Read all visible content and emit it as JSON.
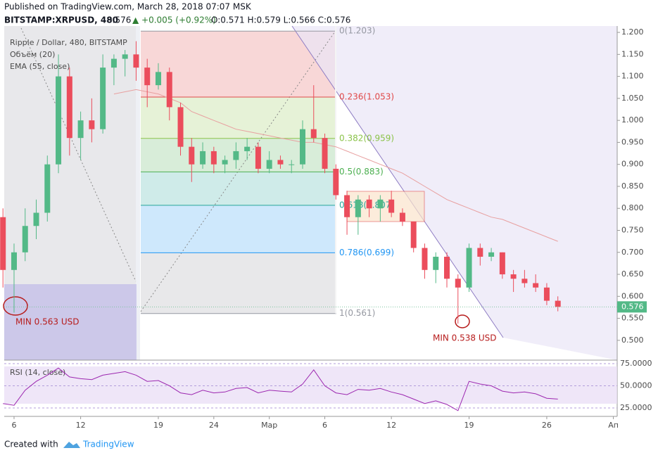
{
  "chart_data": {
    "type": "candlestick",
    "published": "Published on TradingView.com, March 28, 2018 07:07 MSK",
    "symbol": "BITSTAMP:XRPUSD, 480",
    "last": "0.576",
    "change": "▲ +0.005 (+0.92%)",
    "ohlc": "O:0.571 H:0.579 L:0.566 C:0.576",
    "legend": [
      "Ripple / Dollar, 480, BITSTAMP",
      "Объём (20)",
      "EMA (55, close)"
    ],
    "rsi_title": "RSI (14, close)",
    "price_label": "0.576",
    "annotations": [
      "MIN 0.563 USD",
      "MIN 0.538 USD"
    ],
    "footer": [
      "Created with",
      "TradingView"
    ],
    "categories": [
      null,
      "6",
      null,
      null,
      null,
      null,
      null,
      "12",
      null,
      null,
      null,
      null,
      null,
      null,
      "19",
      null,
      null,
      null,
      null,
      "24",
      null,
      null,
      null,
      null,
      "Мар",
      null,
      null,
      null,
      null,
      "6",
      null,
      null,
      null,
      null,
      null,
      "12",
      null,
      null,
      null,
      null,
      null,
      null,
      "19",
      null,
      null,
      null,
      null,
      null,
      null,
      "26",
      null,
      null,
      null,
      null,
      null,
      "Ап"
    ],
    "open": [
      0.78,
      0.66,
      0.7,
      0.76,
      0.79,
      0.9,
      1.1,
      0.96,
      1.0,
      0.98,
      1.12,
      1.14,
      1.15,
      1.12,
      1.08,
      1.11,
      1.03,
      0.94,
      0.9,
      0.93,
      0.9,
      0.91,
      0.93,
      0.94,
      0.89,
      0.91,
      0.9,
      0.9,
      0.98,
      0.96,
      0.89,
      0.83,
      0.78,
      0.82,
      0.8,
      0.82,
      0.79,
      0.77,
      0.71,
      0.66,
      0.69,
      0.64,
      0.62,
      0.71,
      0.69,
      0.7,
      0.65,
      0.64,
      0.63,
      0.62,
      0.59,
      null,
      null,
      null,
      null,
      null
    ],
    "high": [
      0.8,
      0.72,
      0.8,
      0.82,
      0.92,
      1.15,
      1.12,
      1.02,
      1.05,
      1.15,
      1.15,
      1.16,
      1.18,
      1.14,
      1.13,
      1.12,
      1.04,
      0.96,
      0.95,
      0.94,
      0.92,
      0.95,
      0.96,
      0.95,
      0.93,
      0.92,
      0.91,
      1.0,
      1.08,
      0.97,
      0.9,
      0.84,
      0.83,
      0.83,
      0.83,
      0.84,
      0.8,
      0.77,
      0.72,
      0.7,
      0.7,
      0.65,
      0.72,
      0.72,
      0.71,
      0.7,
      0.66,
      0.66,
      0.65,
      0.63,
      0.6,
      null,
      null,
      null,
      null,
      null
    ],
    "low": [
      0.62,
      0.563,
      0.68,
      0.73,
      0.77,
      0.88,
      0.92,
      0.91,
      0.95,
      0.97,
      1.08,
      1.1,
      1.09,
      1.03,
      1.07,
      1.0,
      0.92,
      0.86,
      0.89,
      0.88,
      0.88,
      0.89,
      0.91,
      0.88,
      0.88,
      0.89,
      0.88,
      0.89,
      0.95,
      0.88,
      0.82,
      0.74,
      0.74,
      0.78,
      0.77,
      0.78,
      0.76,
      0.7,
      0.64,
      0.63,
      0.62,
      0.538,
      0.61,
      0.67,
      0.68,
      0.64,
      0.61,
      0.62,
      0.61,
      0.58,
      0.566,
      null,
      null,
      null,
      null,
      null
    ],
    "close": [
      0.66,
      0.7,
      0.76,
      0.79,
      0.9,
      1.1,
      0.96,
      1.0,
      0.98,
      1.12,
      1.14,
      1.15,
      1.12,
      1.08,
      1.11,
      1.03,
      0.94,
      0.9,
      0.93,
      0.9,
      0.91,
      0.93,
      0.94,
      0.89,
      0.91,
      0.9,
      0.9,
      0.98,
      0.96,
      0.89,
      0.83,
      0.78,
      0.82,
      0.8,
      0.82,
      0.79,
      0.77,
      0.71,
      0.66,
      0.69,
      0.64,
      0.62,
      0.71,
      0.69,
      0.7,
      0.65,
      0.64,
      0.63,
      0.62,
      0.59,
      0.576,
      null,
      null,
      null,
      null,
      null
    ],
    "ema": [
      null,
      null,
      null,
      null,
      null,
      null,
      null,
      null,
      null,
      null,
      1.06,
      1.065,
      1.07,
      1.065,
      1.06,
      1.05,
      1.04,
      1.02,
      1.01,
      1.0,
      0.99,
      0.98,
      0.975,
      0.97,
      0.965,
      0.96,
      0.955,
      0.95,
      0.95,
      0.945,
      0.94,
      0.93,
      0.92,
      0.91,
      0.9,
      0.89,
      0.88,
      0.865,
      0.85,
      0.835,
      0.82,
      0.81,
      0.8,
      0.79,
      0.78,
      0.775,
      0.765,
      0.755,
      0.745,
      0.735,
      0.725,
      null,
      null,
      null,
      null,
      null
    ],
    "rsi": [
      30,
      28,
      45,
      55,
      62,
      70,
      60,
      58,
      57,
      62,
      64,
      66,
      62,
      55,
      56,
      50,
      42,
      40,
      45,
      42,
      43,
      47,
      48,
      42,
      45,
      44,
      43,
      52,
      68,
      50,
      42,
      40,
      46,
      45,
      47,
      43,
      40,
      35,
      30,
      33,
      29,
      22,
      55,
      52,
      50,
      44,
      42,
      43,
      41,
      36,
      35,
      null,
      null,
      null,
      null,
      null
    ],
    "up_color": "#53b987",
    "down_color": "#eb4d5c",
    "ema_color": "#e8a0a0",
    "rsi_color": "#9c27b0",
    "ylim": [
      0.455,
      1.2145
    ],
    "yticks": [
      {
        "value": 0.5,
        "label": "0.500"
      },
      {
        "value": 0.55,
        "label": "0.550"
      },
      {
        "value": 0.6,
        "label": "0.600"
      },
      {
        "value": 0.65,
        "label": "0.650"
      },
      {
        "value": 0.7,
        "label": "0.700"
      },
      {
        "value": 0.75,
        "label": "0.750"
      },
      {
        "value": 0.8,
        "label": "0.800"
      },
      {
        "value": 0.85,
        "label": "0.850"
      },
      {
        "value": 0.9,
        "label": "0.900"
      },
      {
        "value": 0.95,
        "label": "0.950"
      },
      {
        "value": 1.0,
        "label": "1.000"
      },
      {
        "value": 1.05,
        "label": "1.050"
      },
      {
        "value": 1.1,
        "label": "1.100"
      },
      {
        "value": 1.15,
        "label": "1.150"
      },
      {
        "value": 1.2,
        "label": "1.200"
      }
    ],
    "rsi_ylim": [
      15.5,
      77.4
    ],
    "rsi_yticks": [
      {
        "value": 25,
        "label": "25.0000"
      },
      {
        "value": 50,
        "label": "50.0000"
      },
      {
        "value": 75,
        "label": "75.0000"
      }
    ],
    "fib": [
      {
        "value": 1.203,
        "label": "0(1.203)",
        "color": "#9598a1"
      },
      {
        "value": 1.053,
        "label": "0.236(1.053)",
        "color": "#e04848"
      },
      {
        "value": 0.959,
        "label": "0.382(0.959)",
        "color": "#8bc34a"
      },
      {
        "value": 0.883,
        "label": "0.5(0.883)",
        "color": "#4caf50"
      },
      {
        "value": 0.807,
        "label": "0.618(0.807)",
        "color": "#26a69a"
      },
      {
        "value": 0.699,
        "label": "0.786(0.699)",
        "color": "#2196f3"
      },
      {
        "value": 0.561,
        "label": "1(0.561)",
        "color": "#9598a1"
      }
    ]
  }
}
